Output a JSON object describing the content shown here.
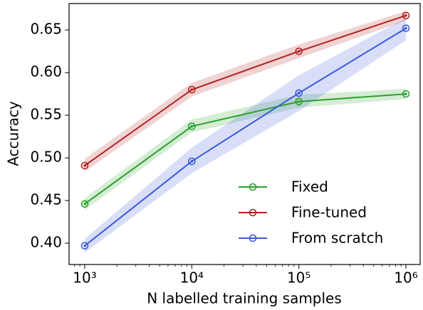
{
  "chart_data": {
    "type": "line",
    "x_label": "N labelled training samples",
    "y_label": "Accuracy",
    "x": [
      1000,
      10000,
      100000,
      1000000
    ],
    "x_log": true,
    "xlim": [
      714,
      1358000
    ],
    "xticks": [
      {
        "value": 1000,
        "label": "10³"
      },
      {
        "value": 10000,
        "label": "10⁴"
      },
      {
        "value": 100000,
        "label": "10⁵"
      },
      {
        "value": 1000000,
        "label": "10⁶"
      }
    ],
    "ylim": [
      0.375,
      0.681
    ],
    "yticks": [
      {
        "value": 0.4,
        "label": "0.40"
      },
      0.45,
      {
        "value": 0.5,
        "label": "0.50"
      },
      0.55,
      {
        "value": 0.6,
        "label": "0.60"
      },
      0.65
    ],
    "legend": "lower right",
    "series": [
      {
        "name": "Fixed",
        "color": "#2ca02c",
        "values": [
          0.446,
          0.537,
          0.566,
          0.575
        ],
        "lower": [
          0.439,
          0.53,
          0.559,
          0.569
        ],
        "upper": [
          0.453,
          0.545,
          0.574,
          0.581
        ]
      },
      {
        "name": "Fine-tuned",
        "color": "#b22222",
        "values": [
          0.491,
          0.58,
          0.625,
          0.667
        ],
        "lower": [
          0.484,
          0.572,
          0.617,
          0.661
        ],
        "upper": [
          0.499,
          0.588,
          0.633,
          0.672
        ]
      },
      {
        "name": "From scratch",
        "color": "#3a5bd9",
        "values": [
          0.397,
          0.496,
          0.576,
          0.652
        ],
        "lower": [
          0.389,
          0.482,
          0.555,
          0.638
        ],
        "upper": [
          0.405,
          0.512,
          0.597,
          0.664
        ]
      }
    ]
  }
}
